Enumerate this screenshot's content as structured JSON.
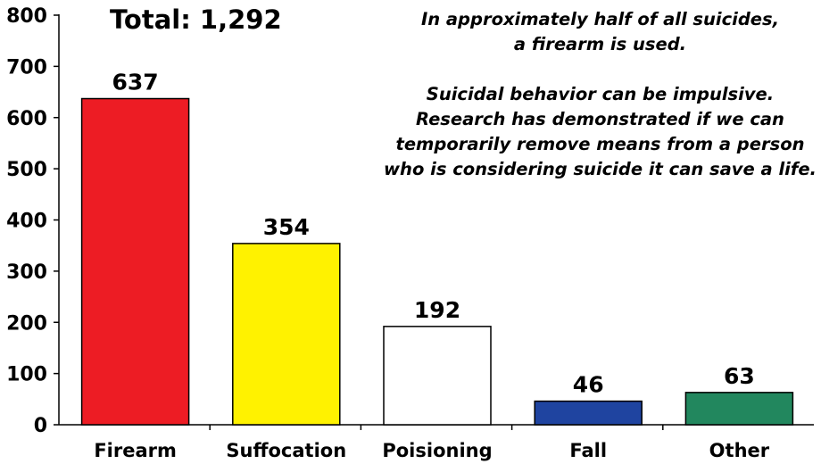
{
  "chart_data": {
    "type": "bar",
    "title": "Total: 1,292",
    "categories": [
      "Firearm",
      "Suffocation",
      "Poisioning",
      "Fall",
      "Other"
    ],
    "values": [
      637,
      354,
      192,
      46,
      63
    ],
    "data_labels": [
      "637",
      "354",
      "192",
      "46",
      "63"
    ],
    "colors": [
      "#ed1c24",
      "#fff200",
      "#ffffff",
      "#1f44a0",
      "#22875e"
    ],
    "ylim": [
      0,
      800
    ],
    "yticks": [
      0,
      100,
      200,
      300,
      400,
      500,
      600,
      700,
      800
    ],
    "xlabel": "",
    "ylabel": "",
    "grid": false,
    "legend": "none"
  },
  "annotation": {
    "line1": "In approximately half of all suicides,",
    "line2": "a firearm is used.",
    "line3": "Suicidal behavior can be impulsive.",
    "line4": "Research has demonstrated if we can",
    "line5": "temporarily remove means from a person",
    "line6": "who is considering suicide it can save a life."
  }
}
